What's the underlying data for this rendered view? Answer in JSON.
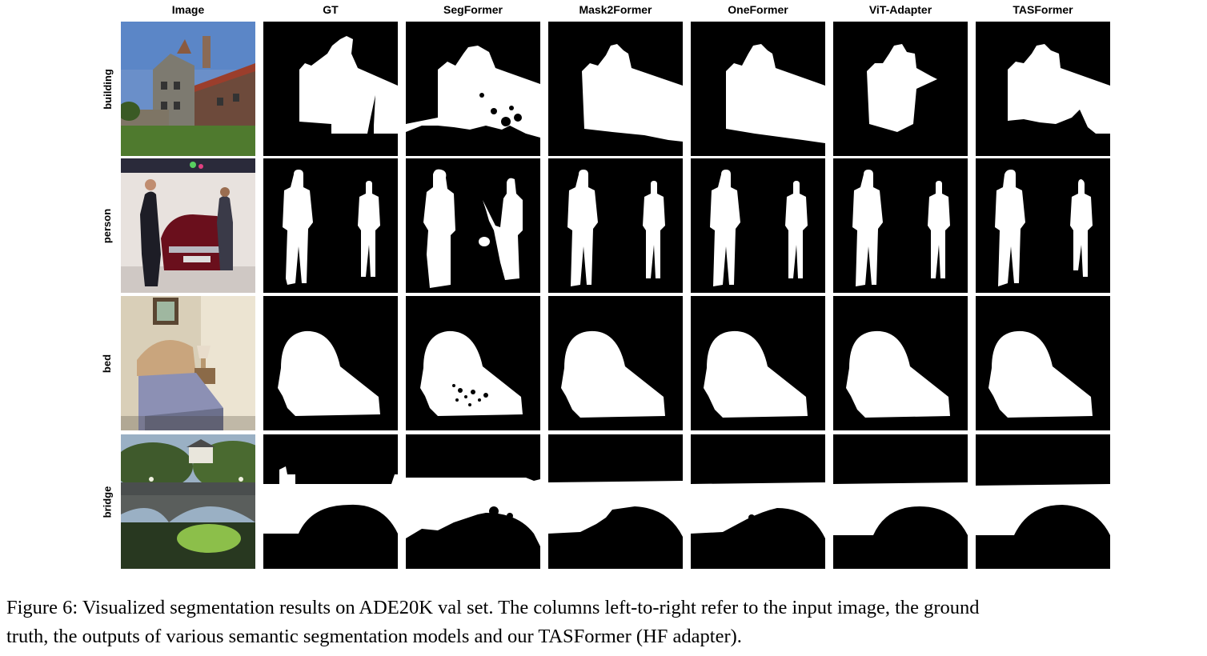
{
  "figure": {
    "columns": [
      "Image",
      "GT",
      "SegFormer",
      "Mask2Former",
      "OneFormer",
      "ViT-Adapter",
      "TASFormer"
    ],
    "rows": [
      {
        "label": "building"
      },
      {
        "label": "person"
      },
      {
        "label": "bed"
      },
      {
        "label": "bridge"
      }
    ],
    "caption": {
      "line1": "Figure 6: Visualized segmentation results on ADE20K val set. The columns left-to-right refer to the input image, the ground",
      "line2": "truth, the outputs of various semantic segmentation models and our TASFormer (HF adapter)."
    },
    "mask_colors": {
      "background": "#000000",
      "foreground": "#ffffff"
    }
  }
}
